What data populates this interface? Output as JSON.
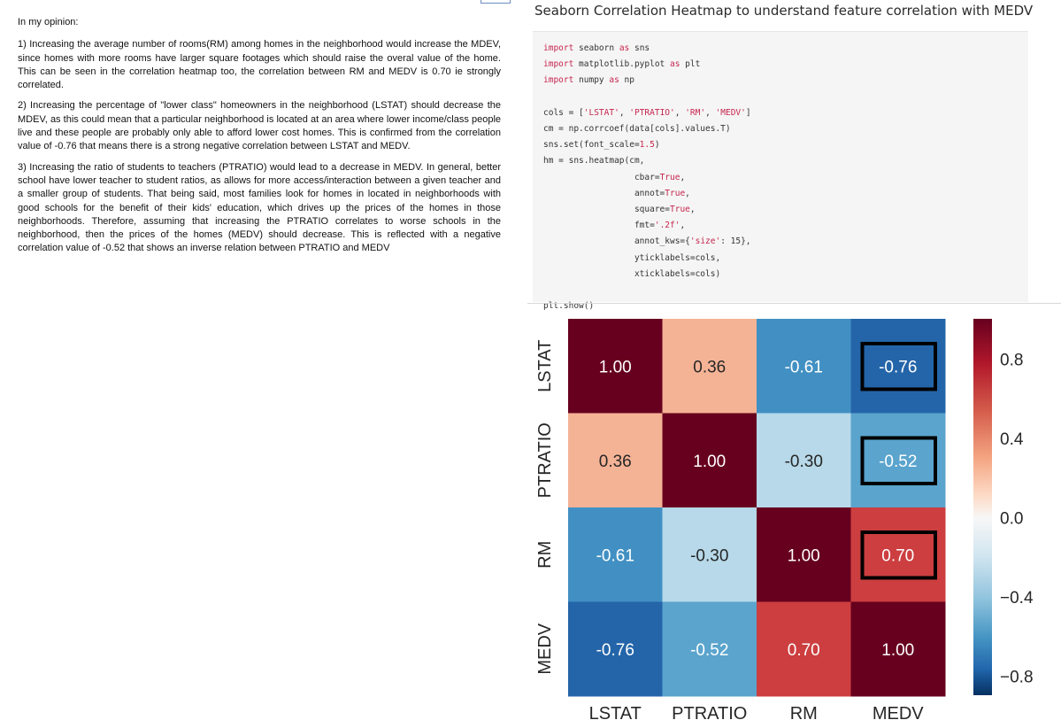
{
  "explanation": {
    "intro": "In my opinion:",
    "points": [
      "1) Increasing the average number of rooms(RM) among homes in the neighborhood would increase the MDEV, since homes with more rooms have larger square footages which should raise the overal value of the home. This can be seen in the correlation heatmap too, the correlation between RM and MEDV is 0.70 ie strongly correlated.",
      "2) Increasing the percentage of \"lower class\" homeowners in the neighborhood (LSTAT) should decrease the MDEV, as this could mean that a particular neighborhood is located at an area where lower income/class people live and these people are probably only able to afford lower cost homes. This is confirmed from the correlation value of -0.76 that means there is a strong negative correlation between LSTAT and MEDV.",
      "3) Increasing the ratio of students to teachers (PTRATIO) would lead to a decrease in MEDV. In general, better school have lower teacher to student ratios, as allows for more access/interaction between a given teacher and a smaller group of students. That being said, most families look for homes in located in neighborhoods with good schools for the benefit of their kids' education, which drives up the prices of the homes in those neighborhoods. Therefore, assuming that increasing the PTRATIO correlates to worse schools in the neighborhood, then the prices of the homes (MEDV) should decrease. This is reflected with a negative correlation value of -0.52 that shows an inverse relation between PTRATIO and MEDV"
    ]
  },
  "notebook": {
    "heading": "Seaborn Correlation Heatmap to understand feature correlation with MEDV",
    "code": {
      "imports": [
        {
          "kw": "import",
          "mod": " seaborn ",
          "as": "as",
          "alias": " sns"
        },
        {
          "kw": "import",
          "mod": " matplotlib.pyplot ",
          "as": "as",
          "alias": " plt"
        },
        {
          "kw": "import",
          "mod": " numpy ",
          "as": "as",
          "alias": " np"
        }
      ],
      "cols_prefix": "cols = [",
      "cols_items": [
        "'LSTAT'",
        "'PTRATIO'",
        "'RM'",
        "'MEDV'"
      ],
      "cols_suffix": "]",
      "line_cm": "cm = np.corrcoef(data[cols].values.T)",
      "line_set_prefix": "sns.set(font_scale=",
      "line_set_num": "1.5",
      "line_set_suffix": ")",
      "line_hm": "hm = sns.heatmap(cm,",
      "kwargs": [
        {
          "k": "cbar=",
          "v": "True",
          "end": ","
        },
        {
          "k": "annot=",
          "v": "True",
          "end": ","
        },
        {
          "k": "square=",
          "v": "True",
          "end": ","
        },
        {
          "k": "fmt=",
          "v": "'.2f'",
          "end": ","
        },
        {
          "k": "annot_kws={",
          "v": "'size'",
          "end": ": 15},"
        },
        {
          "k": "yticklabels=cols,",
          "v": "",
          "end": ""
        },
        {
          "k": "xticklabels=cols)",
          "v": "",
          "end": ""
        }
      ],
      "line_show": "plt.show()"
    }
  },
  "chart_data": {
    "type": "heatmap",
    "x_labels": [
      "LSTAT",
      "PTRATIO",
      "RM",
      "MEDV"
    ],
    "y_labels": [
      "LSTAT",
      "PTRATIO",
      "RM",
      "MEDV"
    ],
    "values": [
      [
        1.0,
        0.36,
        -0.61,
        -0.76
      ],
      [
        0.36,
        1.0,
        -0.3,
        -0.52
      ],
      [
        -0.61,
        -0.3,
        1.0,
        0.7
      ],
      [
        -0.76,
        -0.52,
        0.7,
        1.0
      ]
    ],
    "annotations": [
      [
        "1.00",
        "0.36",
        "-0.61",
        "-0.76"
      ],
      [
        "0.36",
        "1.00",
        "-0.30",
        "-0.52"
      ],
      [
        "-0.61",
        "-0.30",
        "1.00",
        "0.70"
      ],
      [
        "-0.76",
        "-0.52",
        "0.70",
        "1.00"
      ]
    ],
    "colorbar": {
      "range": [
        -0.9,
        1.0
      ],
      "ticks": [
        0.8,
        0.4,
        0.0,
        -0.4,
        -0.8
      ],
      "tick_labels": [
        "0.8",
        "0.4",
        "0.0",
        "−0.4",
        "−0.8"
      ],
      "colormap": "RdBu_r"
    },
    "highlighted_cells": [
      [
        0,
        3
      ],
      [
        1,
        3
      ],
      [
        2,
        3
      ]
    ],
    "colors": {
      "1.00": "#67001f",
      "0.70": "#cc3e3f",
      "0.36": "#f5b396",
      "-0.30": "#b7d9e9",
      "-0.52": "#5aa4cd",
      "-0.61": "#4290c3",
      "-0.76": "#2465a9"
    }
  }
}
